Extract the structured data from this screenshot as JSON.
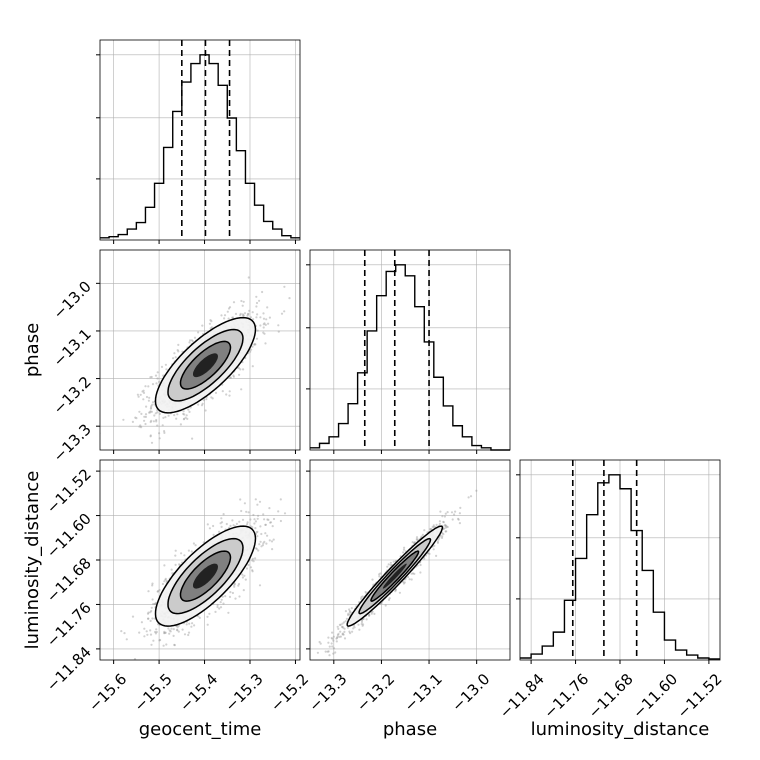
{
  "chart_data": {
    "type": "corner",
    "grid": true,
    "parameters": [
      {
        "name": "geocent_time",
        "range": [
          -15.63,
          -15.19
        ],
        "ticks": [
          -15.6,
          -15.5,
          -15.4,
          -15.3,
          -15.2
        ],
        "tick_labels": [
          "−15.6",
          "−15.5",
          "−15.4",
          "−15.3",
          "−15.2"
        ],
        "quantiles": [
          -15.45,
          -15.398,
          -15.345
        ],
        "histogram": {
          "bin_edges": [
            -15.63,
            -15.61,
            -15.59,
            -15.57,
            -15.55,
            -15.53,
            -15.51,
            -15.49,
            -15.47,
            -15.45,
            -15.43,
            -15.41,
            -15.39,
            -15.37,
            -15.35,
            -15.33,
            -15.31,
            -15.29,
            -15.27,
            -15.25,
            -15.23,
            -15.21,
            -15.19
          ],
          "counts": [
            2,
            3,
            5,
            10,
            16,
            30,
            52,
            85,
            118,
            145,
            162,
            170,
            162,
            142,
            112,
            82,
            52,
            32,
            17,
            10,
            4,
            2
          ]
        }
      },
      {
        "name": "phase",
        "range": [
          -13.35,
          -12.93
        ],
        "ticks": [
          -13.3,
          -13.2,
          -13.1,
          -13.0
        ],
        "tick_labels": [
          "−13.3",
          "−13.2",
          "−13.1",
          "−13.0"
        ],
        "quantiles": [
          -13.235,
          -13.172,
          -13.1
        ],
        "histogram": {
          "bin_edges": [
            -13.35,
            -13.33,
            -13.31,
            -13.29,
            -13.27,
            -13.25,
            -13.23,
            -13.21,
            -13.19,
            -13.17,
            -13.15,
            -13.13,
            -13.11,
            -13.09,
            -13.07,
            -13.05,
            -13.03,
            -13.01,
            -12.99,
            -12.97,
            -12.95,
            -12.93
          ],
          "counts": [
            2,
            6,
            12,
            24,
            42,
            70,
            108,
            140,
            162,
            168,
            158,
            130,
            98,
            66,
            40,
            22,
            12,
            4,
            2,
            0,
            0
          ]
        }
      },
      {
        "name": "luminosity_distance",
        "range": [
          -11.86,
          -11.5
        ],
        "ticks": [
          -11.84,
          -11.76,
          -11.68,
          -11.6,
          -11.52
        ],
        "tick_labels": [
          "−11.84",
          "−11.76",
          "−11.68",
          "−11.60",
          "−11.52"
        ],
        "quantiles": [
          -11.765,
          -11.709,
          -11.65
        ],
        "histogram": {
          "bin_edges": [
            -11.86,
            -11.84,
            -11.82,
            -11.8,
            -11.78,
            -11.76,
            -11.74,
            -11.72,
            -11.7,
            -11.68,
            -11.66,
            -11.64,
            -11.62,
            -11.6,
            -11.58,
            -11.56,
            -11.54,
            -11.52,
            -11.5
          ],
          "counts": [
            2,
            6,
            14,
            28,
            60,
            102,
            146,
            178,
            186,
            172,
            130,
            90,
            48,
            20,
            10,
            5,
            2,
            1
          ]
        }
      }
    ],
    "pairs": [
      {
        "x": "geocent_time",
        "y": "phase",
        "mean": [
          -15.398,
          -13.172
        ],
        "std": [
          0.055,
          0.05
        ],
        "corr": 0.75
      },
      {
        "x": "geocent_time",
        "y": "luminosity_distance",
        "mean": [
          -15.398,
          -11.709
        ],
        "std": [
          0.055,
          0.045
        ],
        "corr": 0.75
      },
      {
        "x": "phase",
        "y": "luminosity_distance",
        "mean": [
          -13.172,
          -11.709
        ],
        "std": [
          0.05,
          0.045
        ],
        "corr": 0.97
      }
    ],
    "contour_levels_sigma": [
      0.5,
      1.0,
      1.5,
      2.0
    ],
    "scatter_points_per_panel": 1400,
    "colors": {
      "scatter": "#9a9a9a",
      "contour_line": "#000000",
      "grid": "#b0b0b0",
      "hist_line": "#000000",
      "quantile_line": "#000000"
    }
  }
}
